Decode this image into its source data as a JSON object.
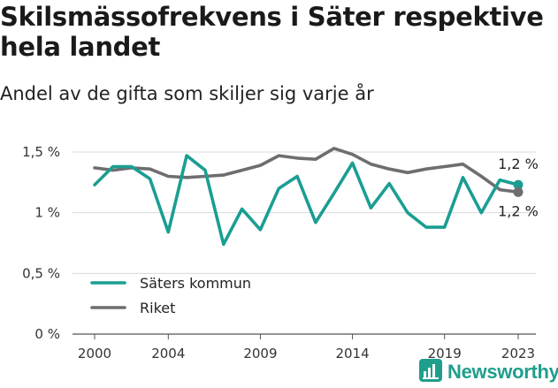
{
  "title": "Skilsmässofrekvens i Säter respektive hela landet",
  "subtitle": "Andel av de gifta som skiljer sig varje år",
  "brand": {
    "name": "Newsworthy",
    "icon": "newsworthy-logo-icon"
  },
  "colors": {
    "saters_kommun": "#1a9e92",
    "riket": "#6e6e70",
    "grid": "#d9d9d9",
    "axis": "#555555"
  },
  "chart_data": {
    "type": "line",
    "x": [
      2000,
      2001,
      2002,
      2003,
      2004,
      2005,
      2006,
      2007,
      2008,
      2009,
      2010,
      2011,
      2012,
      2013,
      2014,
      2015,
      2016,
      2017,
      2018,
      2019,
      2020,
      2021,
      2022,
      2023
    ],
    "series": [
      {
        "name": "Säters kommun",
        "values": [
          1.23,
          1.38,
          1.38,
          1.28,
          0.84,
          1.47,
          1.35,
          0.74,
          1.03,
          0.86,
          1.2,
          1.3,
          0.92,
          1.16,
          1.41,
          1.04,
          1.24,
          1.0,
          0.88,
          0.88,
          1.29,
          1.0,
          1.27,
          1.23
        ]
      },
      {
        "name": "Riket",
        "values": [
          1.37,
          1.35,
          1.37,
          1.36,
          1.3,
          1.29,
          1.3,
          1.31,
          1.35,
          1.39,
          1.47,
          1.45,
          1.44,
          1.53,
          1.48,
          1.4,
          1.36,
          1.33,
          1.36,
          1.38,
          1.4,
          1.3,
          1.19,
          1.17
        ]
      }
    ],
    "x_ticks": [
      2000,
      2004,
      2009,
      2014,
      2019,
      2023
    ],
    "y_ticks": [
      0,
      0.5,
      1,
      1.5
    ],
    "y_tick_labels": [
      "0 %",
      "0,5 %",
      "1 %",
      "1,5 %"
    ],
    "ylim": [
      0,
      1.6
    ],
    "xlim": [
      2000,
      2023
    ],
    "grid": true,
    "legend_position": "bottom-left",
    "end_labels": [
      "1,2 %",
      "1,2 %"
    ],
    "xlabel": "",
    "ylabel": ""
  }
}
